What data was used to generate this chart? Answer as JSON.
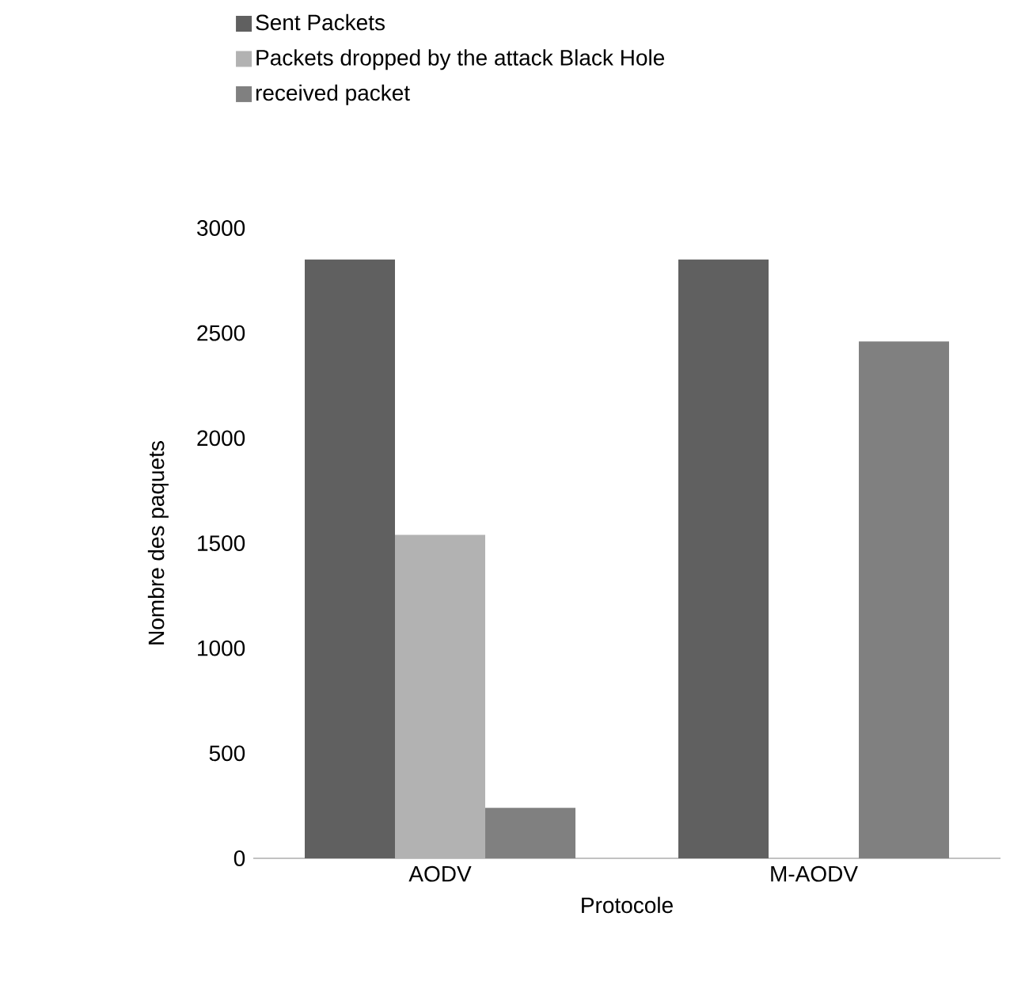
{
  "chart_data": {
    "type": "bar",
    "xlabel": "Protocole",
    "ylabel": "Nombre des paquets",
    "categories": [
      "AODV",
      "M-AODV"
    ],
    "series": [
      {
        "name": "Sent Packets",
        "color": "#606060",
        "values": [
          2850,
          2850
        ]
      },
      {
        "name": "Packets dropped by the attack Black Hole",
        "color": "#b2b2b2",
        "values": [
          1540,
          0
        ]
      },
      {
        "name": "received packet",
        "color": "#808080",
        "values": [
          240,
          2460
        ]
      }
    ],
    "ylim": [
      0,
      3000
    ],
    "yticks": [
      0,
      500,
      1000,
      1500,
      2000,
      2500,
      3000
    ],
    "legend": "top",
    "grid": false
  }
}
